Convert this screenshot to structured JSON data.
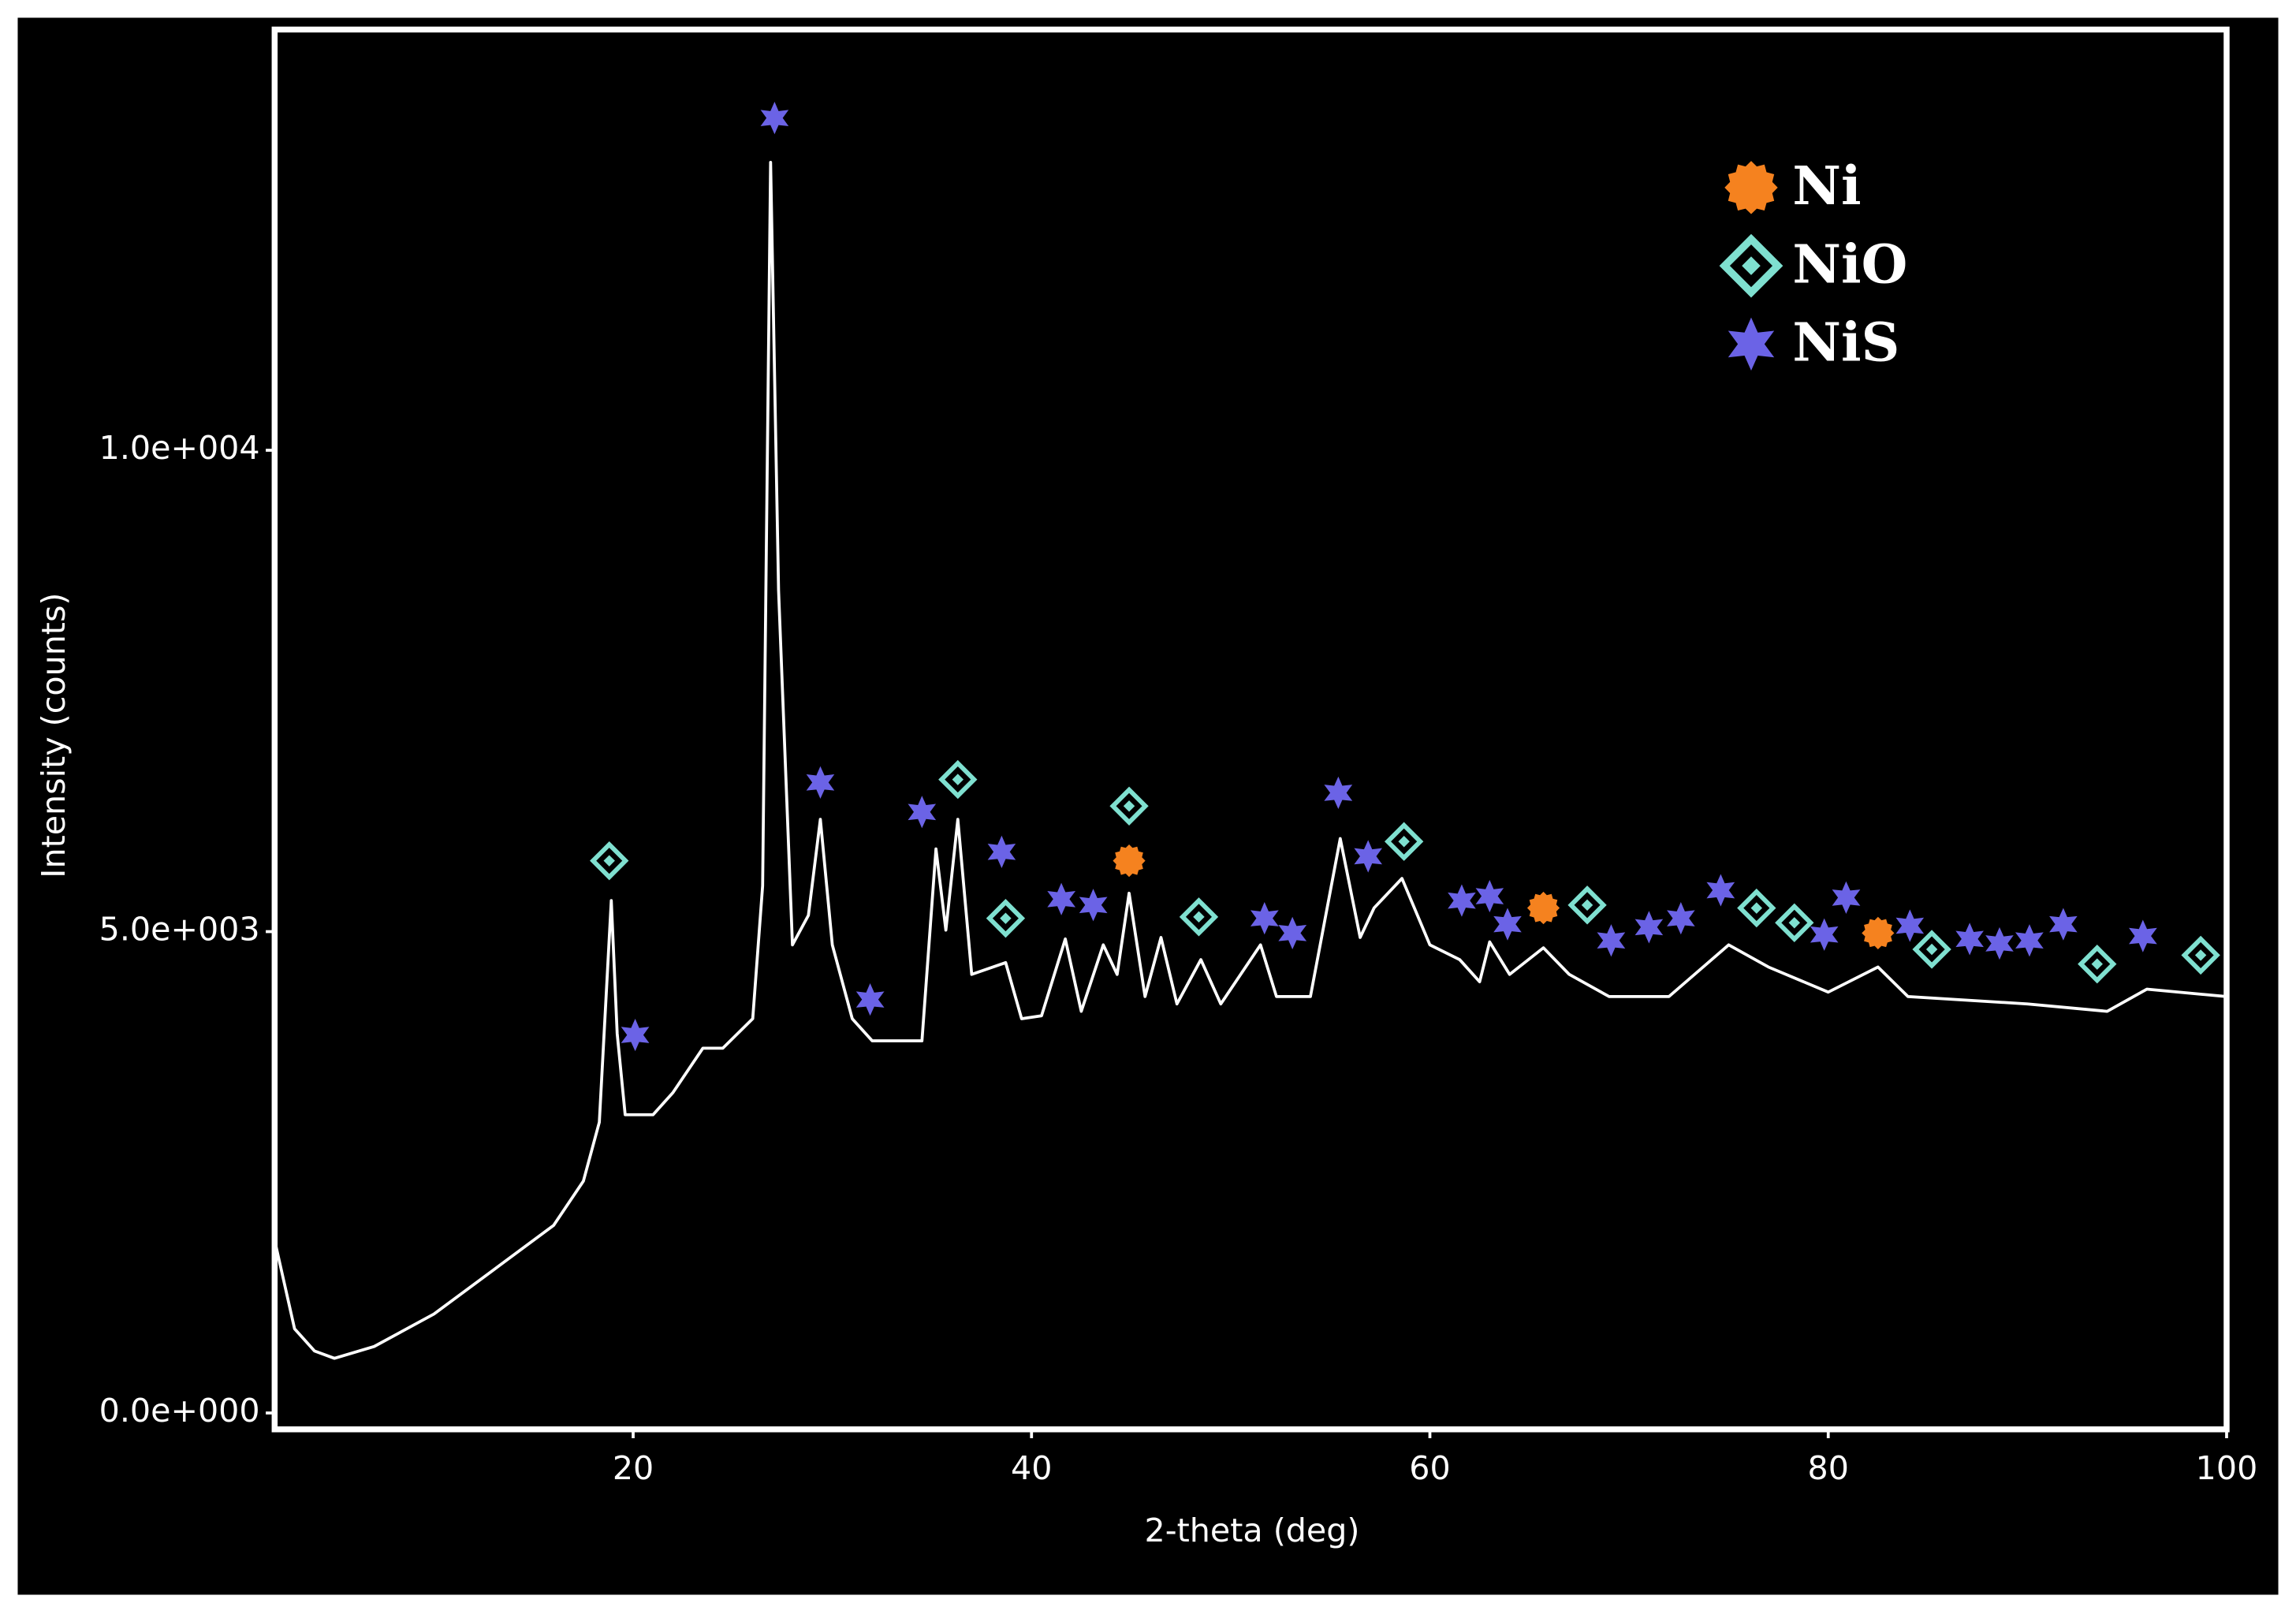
{
  "chart_data": {
    "type": "line",
    "xlabel": "2-theta (deg)",
    "ylabel": "Intensity (counts)",
    "color": "#ffffff",
    "x": [
      2,
      3,
      4,
      5,
      7,
      10,
      13,
      16,
      17.5,
      18.3,
      18.9,
      19.2,
      19.6,
      21,
      22,
      23.5,
      24.5,
      26,
      26.5,
      26.9,
      27.3,
      28,
      28.8,
      29.4,
      30,
      31,
      32,
      34.5,
      35.2,
      35.7,
      36.3,
      37,
      38.7,
      39.5,
      40.5,
      41.7,
      42.5,
      43.6,
      44.3,
      44.9,
      45.7,
      46.5,
      47.3,
      48.5,
      49.5,
      51.5,
      52.3,
      54,
      55.5,
      56.5,
      57.2,
      58.6,
      60,
      61.5,
      62.5,
      63,
      64,
      65.7,
      67,
      69,
      72,
      75,
      77,
      80,
      82.5,
      84,
      90,
      94,
      96,
      100
    ],
    "values": [
      1795,
      874,
      644,
      567,
      690,
      1028,
      1488,
      1948,
      2408,
      3020,
      5322,
      3941,
      3098,
      3098,
      3328,
      3788,
      3788,
      4095,
      5475,
      12991,
      8543,
      4862,
      5169,
      6166,
      4862,
      4095,
      3865,
      3865,
      5859,
      5015,
      6166,
      4555,
      4678,
      4095,
      4126,
      4923,
      4172,
      4862,
      4555,
      5399,
      4325,
      4939,
      4248,
      4709,
      4248,
      4862,
      4325,
      4325,
      5966,
      4939,
      5245,
      5552,
      4862,
      4709,
      4479,
      4893,
      4555,
      4831,
      4555,
      4325,
      4325,
      4862,
      4632,
      4371,
      4632,
      4325,
      4248,
      4172,
      4402,
      4325
    ],
    "markers": [
      {
        "name": "Ni",
        "color": "#f5821f",
        "marker": "circle",
        "x": [
          44.9,
          65.7,
          82.5
        ],
        "values": [
          5736,
          5245,
          4985
        ]
      },
      {
        "name": "NiO",
        "color": "#7fe0d0",
        "marker": "diamond",
        "x": [
          18.8,
          36.3,
          38.7,
          44.9,
          48.4,
          58.7,
          67.9,
          76.4,
          78.3,
          85.2,
          93.5,
          98.7
        ],
        "values": [
          5736,
          6580,
          5138,
          6304,
          5153,
          5936,
          5276,
          5245,
          5092,
          4816,
          4663,
          4755
        ]
      },
      {
        "name": "NiS",
        "color": "#6b63e6",
        "marker": "star",
        "x": [
          20.1,
          27.1,
          29.4,
          31.9,
          34.5,
          38.5,
          41.5,
          43.1,
          51.7,
          53.1,
          55.4,
          56.9,
          61.6,
          63.0,
          63.9,
          69.1,
          71.0,
          72.6,
          74.6,
          79.8,
          80.9,
          84.1,
          87.1,
          88.6,
          90.1,
          91.8,
          95.8
        ],
        "values": [
          3926,
          13451,
          6549,
          4294,
          6242,
          5828,
          5337,
          5276,
          5138,
          4985,
          6442,
          5782,
          5322,
          5368,
          5077,
          4908,
          5046,
          5138,
          5429,
          4969,
          5353,
          5061,
          4923,
          4877,
          4908,
          5077,
          4954
        ]
      }
    ],
    "xlim": [
      2,
      100
    ],
    "xticks": [
      20,
      40,
      60,
      80,
      100
    ],
    "ylim": [
      -170,
      14370
    ],
    "yticks": [
      {
        "value": 0,
        "label": "0.0e+000"
      },
      {
        "value": 5000,
        "label": "5.0e+003"
      },
      {
        "value": 10000,
        "label": "1.0e+004"
      }
    ],
    "grid": false,
    "legend": "upper right"
  }
}
